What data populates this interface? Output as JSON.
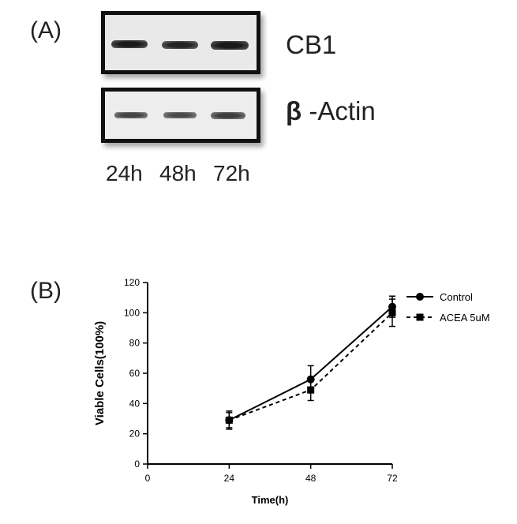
{
  "panel_a": {
    "label": "(A)",
    "blots": [
      {
        "name": "CB1",
        "symbol": ""
      },
      {
        "name": "-Actin",
        "symbol": "β"
      }
    ],
    "lanes": [
      "24h",
      "48h",
      "72h"
    ]
  },
  "panel_b": {
    "label": "(B)"
  },
  "chart_data": {
    "type": "line",
    "xlabel": "Time(h)",
    "ylabel": "Viable Cells(100%)",
    "xlim": [
      0,
      72
    ],
    "ylim": [
      0,
      120
    ],
    "x_ticks": [
      0,
      24,
      48,
      72
    ],
    "y_ticks": [
      0,
      20,
      40,
      60,
      80,
      100,
      120
    ],
    "legend_position": "top-right",
    "grid": false,
    "series": [
      {
        "name": "Control",
        "x": [
          24,
          48,
          72
        ],
        "values": [
          29,
          56,
          104
        ],
        "error": [
          6,
          9,
          7
        ],
        "marker": "circle",
        "line": "solid"
      },
      {
        "name": "ACEA 5uM",
        "x": [
          24,
          48,
          72
        ],
        "values": [
          29,
          49,
          100
        ],
        "error": [
          5,
          7,
          9
        ],
        "marker": "square",
        "line": "dashed"
      }
    ]
  }
}
